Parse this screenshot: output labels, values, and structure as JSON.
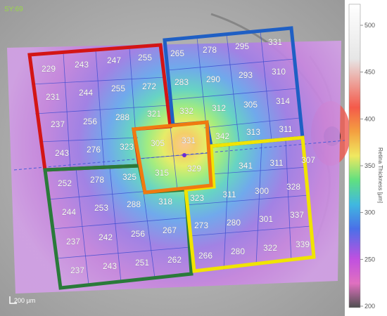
{
  "top_left_label": "SY:69",
  "scale_bar_label": "200 µm",
  "colorbar": {
    "title": "Retina Thickness [µm]",
    "ticks": [
      "500",
      "450",
      "400",
      "350",
      "300",
      "250",
      "200"
    ]
  },
  "quadrants": {
    "top_left": {
      "color": "#d31515",
      "values": [
        "229",
        "243",
        "247",
        "255",
        "231",
        "244",
        "255",
        "272",
        "237",
        "256",
        "288",
        "321",
        "243",
        "276",
        "323"
      ]
    },
    "top_right": {
      "color": "#1f5fc4",
      "values": [
        "265",
        "278",
        "295",
        "331",
        "283",
        "290",
        "293",
        "310",
        "332",
        "312",
        "305",
        "314",
        "342",
        "313",
        "311"
      ]
    },
    "bottom_left": {
      "color": "#2a7a3a",
      "values": [
        "252",
        "278",
        "325",
        "244",
        "253",
        "288",
        "318",
        "237",
        "242",
        "256",
        "267",
        "237",
        "243",
        "251",
        "262"
      ]
    },
    "bottom_right": {
      "color": "#f0e400",
      "values": [
        "341",
        "311",
        "307",
        "323",
        "311",
        "300",
        "328",
        "273",
        "280",
        "301",
        "337",
        "266",
        "280",
        "322",
        "339"
      ]
    },
    "center": {
      "color": "#f07a10",
      "values": [
        "305",
        "331",
        "315",
        "329"
      ]
    }
  }
}
